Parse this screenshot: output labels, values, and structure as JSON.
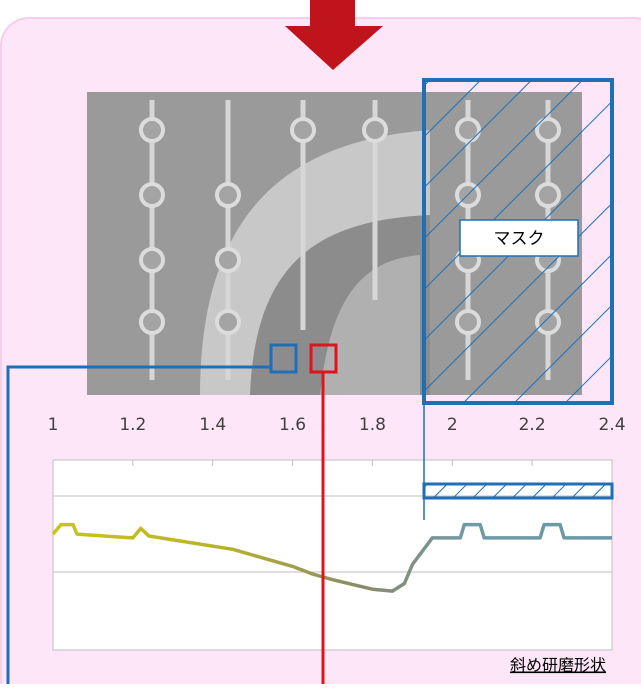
{
  "mask_label": "マスク",
  "chart_data": {
    "type": "line",
    "caption": "斜め研磨形状",
    "x": [
      1.0,
      1.02,
      1.05,
      1.06,
      1.2,
      1.22,
      1.24,
      1.45,
      1.5,
      1.6,
      1.65,
      1.7,
      1.8,
      1.85,
      1.88,
      1.9,
      1.95,
      2.02,
      2.03,
      2.07,
      2.08,
      2.22,
      2.23,
      2.27,
      2.28,
      2.4
    ],
    "values": [
      3.05,
      3.3,
      3.3,
      3.05,
      2.95,
      3.2,
      3.0,
      2.65,
      2.5,
      2.2,
      2.0,
      1.85,
      1.6,
      1.55,
      1.75,
      2.25,
      2.95,
      2.95,
      3.3,
      3.3,
      2.95,
      2.95,
      3.3,
      3.3,
      2.95,
      2.95
    ],
    "xlim": [
      1,
      2.4
    ],
    "xticks": [
      1,
      1.2,
      1.4,
      1.6,
      1.8,
      2,
      2.2,
      2.4
    ],
    "ylim": [
      0,
      5
    ]
  }
}
